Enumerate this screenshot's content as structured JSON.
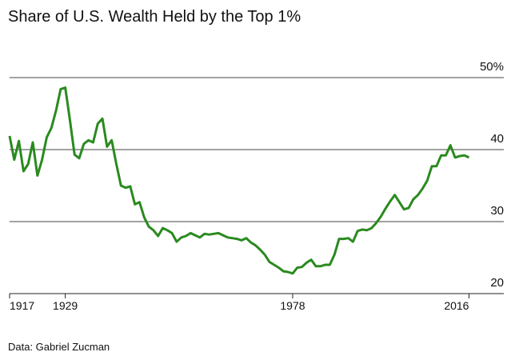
{
  "chart_data": {
    "type": "line",
    "title": "Share of U.S. Wealth Held by the Top 1%",
    "source": "Data: Gabriel Zucman",
    "x": [
      1917,
      1918,
      1919,
      1920,
      1921,
      1922,
      1923,
      1924,
      1925,
      1926,
      1927,
      1928,
      1929,
      1930,
      1931,
      1932,
      1933,
      1934,
      1935,
      1936,
      1937,
      1938,
      1939,
      1940,
      1941,
      1942,
      1943,
      1944,
      1945,
      1946,
      1947,
      1948,
      1949,
      1950,
      1951,
      1952,
      1953,
      1954,
      1955,
      1956,
      1957,
      1958,
      1959,
      1960,
      1961,
      1962,
      1963,
      1964,
      1965,
      1966,
      1967,
      1968,
      1969,
      1970,
      1971,
      1972,
      1973,
      1974,
      1975,
      1976,
      1977,
      1978,
      1979,
      1980,
      1981,
      1982,
      1983,
      1984,
      1985,
      1986,
      1987,
      1988,
      1989,
      1990,
      1991,
      1992,
      1993,
      1994,
      1995,
      1996,
      1997,
      1998,
      1999,
      2000,
      2001,
      2002,
      2003,
      2004,
      2005,
      2006,
      2007,
      2008,
      2009,
      2010,
      2011,
      2012,
      2013,
      2014,
      2015,
      2016
    ],
    "series": [
      {
        "color": "#2a8a1f",
        "values": [
          41.9,
          38.6,
          41.2,
          37.0,
          38.0,
          41.0,
          36.4,
          38.6,
          41.7,
          43.0,
          45.4,
          48.4,
          48.6,
          44.1,
          39.3,
          38.8,
          40.8,
          41.3,
          41.0,
          43.6,
          44.3,
          40.4,
          41.3,
          38.0,
          35.0,
          34.7,
          34.9,
          32.4,
          32.7,
          30.6,
          29.3,
          28.8,
          28.0,
          29.1,
          28.8,
          28.4,
          27.2,
          27.8,
          28.0,
          28.4,
          28.1,
          27.8,
          28.3,
          28.2,
          28.3,
          28.4,
          28.1,
          27.8,
          27.7,
          27.6,
          27.4,
          27.7,
          27.1,
          26.7,
          26.1,
          25.4,
          24.4,
          24.0,
          23.6,
          23.1,
          23.0,
          22.8,
          23.6,
          23.7,
          24.3,
          24.7,
          23.8,
          23.8,
          24.0,
          24.0,
          25.4,
          27.6,
          27.6,
          27.7,
          27.2,
          28.7,
          28.9,
          28.8,
          29.1,
          29.8,
          30.7,
          31.8,
          32.8,
          33.7,
          32.7,
          31.7,
          31.9,
          33.1,
          33.7,
          34.6,
          35.7,
          37.7,
          37.7,
          39.2,
          39.2,
          40.6,
          38.9,
          39.1,
          39.2,
          38.9
        ]
      }
    ],
    "xlim": [
      1917,
      2023.5
    ],
    "xticks": [
      1917,
      1929,
      1978,
      2016
    ],
    "ylim": [
      20,
      50
    ],
    "yticks": [
      20,
      30,
      40,
      {
        "value": 50,
        "label": "50%"
      }
    ],
    "grid": true
  }
}
